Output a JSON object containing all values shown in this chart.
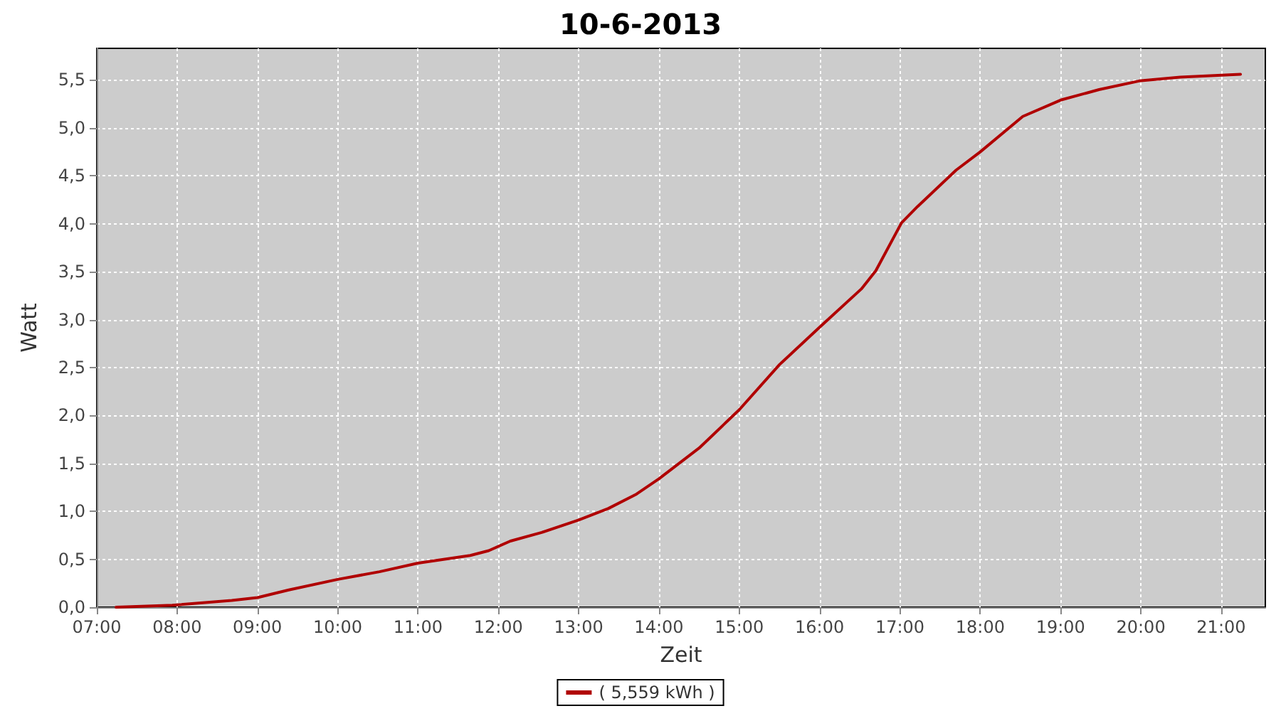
{
  "chart_data": {
    "type": "line",
    "title": "10-6-2013",
    "xlabel": "Zeit",
    "ylabel": "Watt",
    "xlim": [
      7,
      21.55
    ],
    "ylim": [
      0,
      5.83
    ],
    "xticks": [
      {
        "value": 7,
        "label": "07:00"
      },
      {
        "value": 8,
        "label": "08:00"
      },
      {
        "value": 9,
        "label": "09:00"
      },
      {
        "value": 10,
        "label": "10:00"
      },
      {
        "value": 11,
        "label": "11:00"
      },
      {
        "value": 12,
        "label": "12:00"
      },
      {
        "value": 13,
        "label": "13:00"
      },
      {
        "value": 14,
        "label": "14:00"
      },
      {
        "value": 15,
        "label": "15:00"
      },
      {
        "value": 16,
        "label": "16:00"
      },
      {
        "value": 17,
        "label": "17:00"
      },
      {
        "value": 18,
        "label": "18:00"
      },
      {
        "value": 19,
        "label": "19:00"
      },
      {
        "value": 20,
        "label": "20:00"
      },
      {
        "value": 21,
        "label": "21:00"
      }
    ],
    "yticks": [
      {
        "value": 0,
        "label": "0,0"
      },
      {
        "value": 0.5,
        "label": "0,5"
      },
      {
        "value": 1,
        "label": "1,0"
      },
      {
        "value": 1.5,
        "label": "1,5"
      },
      {
        "value": 2,
        "label": "2,0"
      },
      {
        "value": 2.5,
        "label": "2,5"
      },
      {
        "value": 3,
        "label": "3,0"
      },
      {
        "value": 3.5,
        "label": "3,5"
      },
      {
        "value": 4,
        "label": "4,0"
      },
      {
        "value": 4.5,
        "label": "4,5"
      },
      {
        "value": 5,
        "label": "5,0"
      },
      {
        "value": 5.5,
        "label": "5,5"
      }
    ],
    "grid": true,
    "legend": "bottom",
    "marker": "none",
    "line_style": "solid",
    "series": [
      {
        "name": "( 5,559 kWh )",
        "color": "#b00000",
        "x": [
          7.24,
          7.94,
          8.68,
          9.0,
          9.39,
          10.0,
          10.52,
          11.0,
          11.65,
          11.88,
          12.15,
          12.54,
          13.0,
          13.37,
          13.72,
          14.0,
          14.5,
          15.0,
          15.5,
          16.0,
          16.52,
          16.7,
          17.02,
          17.22,
          17.7,
          18.0,
          18.53,
          19.0,
          19.48,
          19.98,
          20.49,
          21.24
        ],
        "values": [
          0,
          0.02,
          0.07,
          0.1,
          0.18,
          0.29,
          0.37,
          0.46,
          0.54,
          0.59,
          0.69,
          0.78,
          0.91,
          1.03,
          1.18,
          1.34,
          1.66,
          2.06,
          2.53,
          2.92,
          3.32,
          3.51,
          4.01,
          4.18,
          4.56,
          4.75,
          5.12,
          5.29,
          5.4,
          5.49,
          5.53,
          5.56
        ]
      }
    ]
  }
}
